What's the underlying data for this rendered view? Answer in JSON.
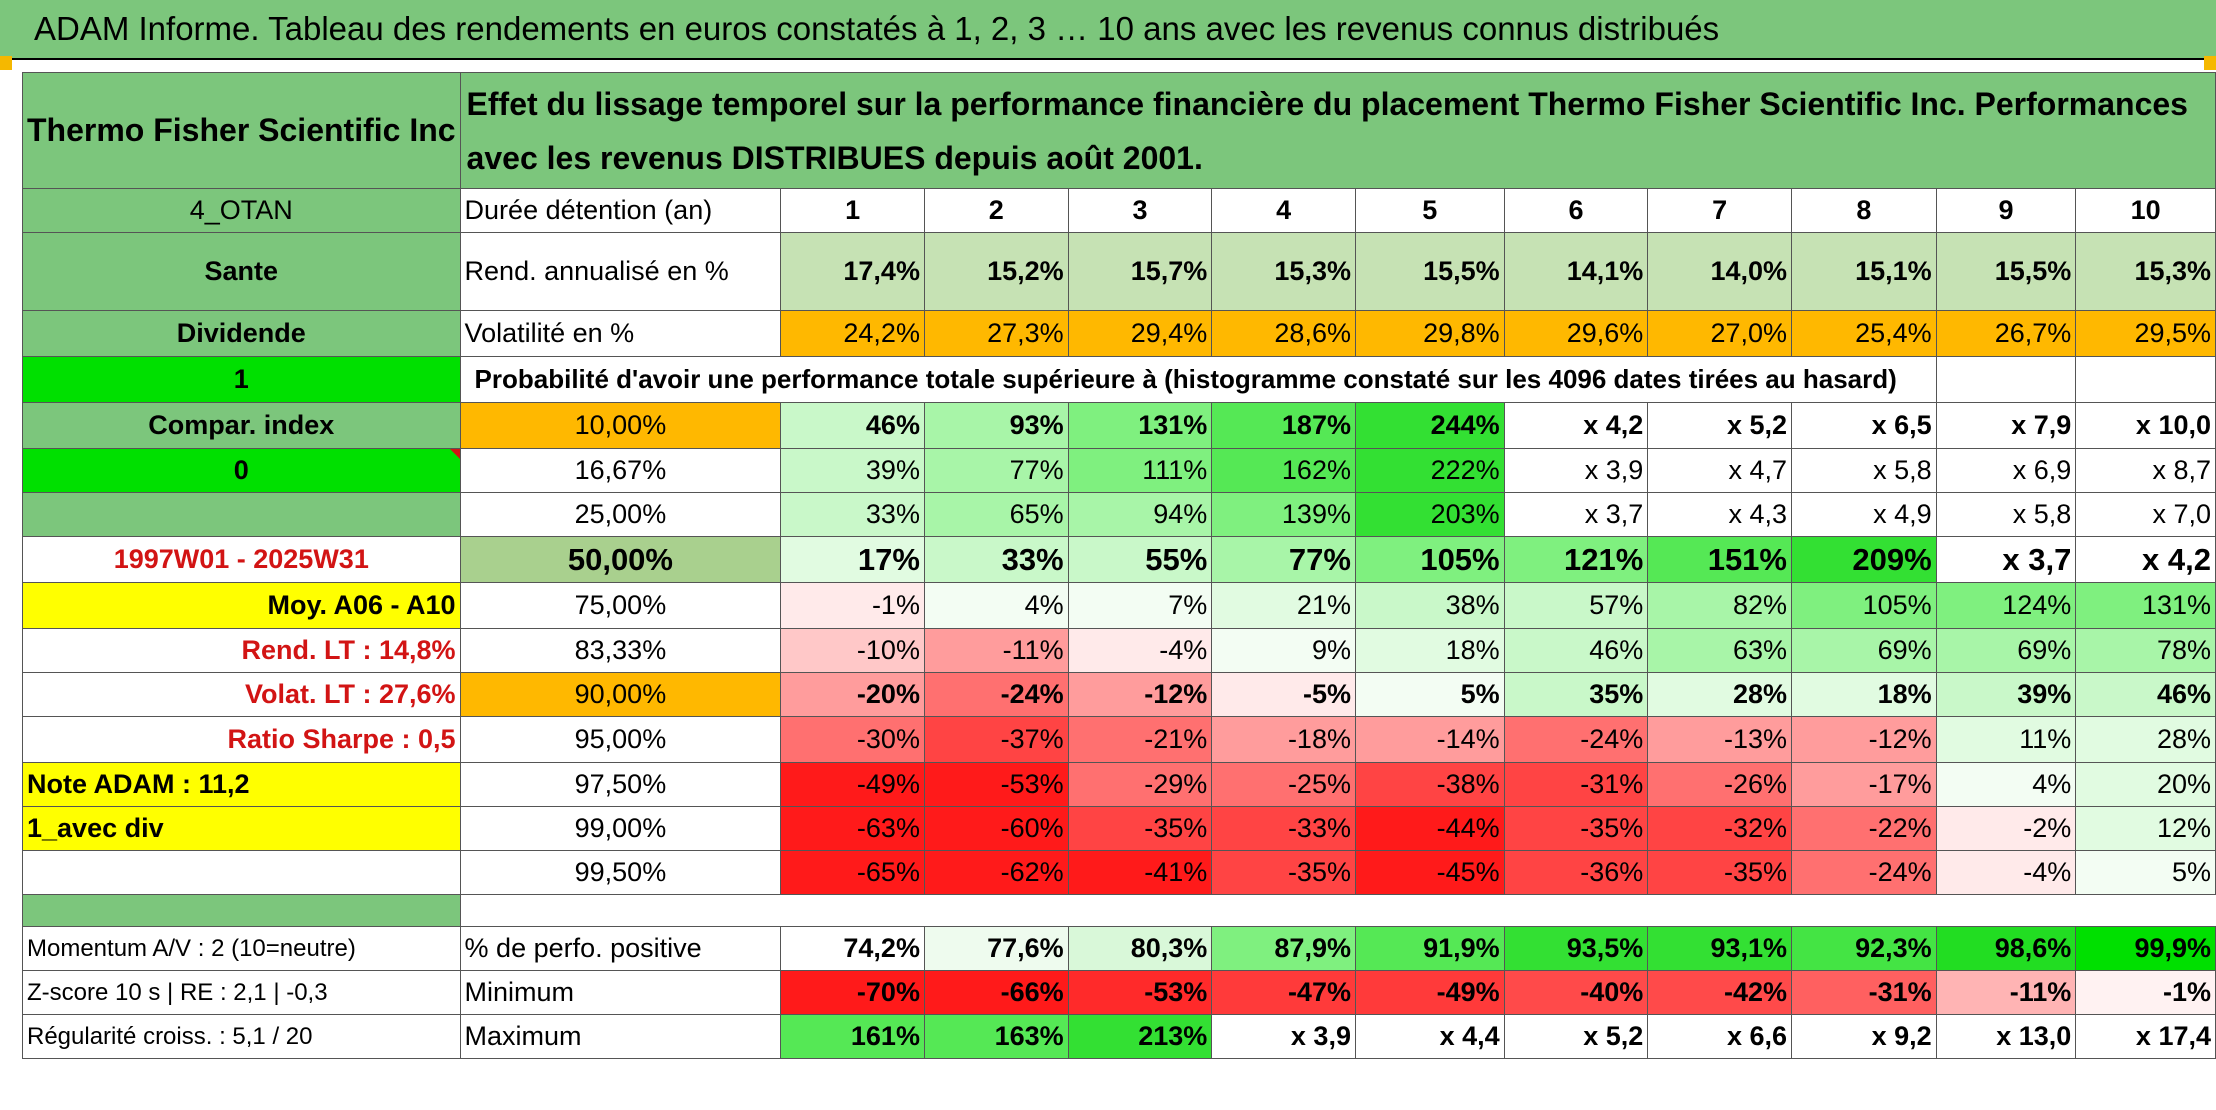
{
  "title": "ADAM Informe. Tableau des rendements en euros constatés à 1, 2, 3 … 10 ans avec les revenus connus distribués",
  "header": {
    "fund_name": "Thermo Fisher Scientific Inc",
    "description": "Effet du lissage temporel sur la performance financière du placement Thermo Fisher Scientific Inc. Performances avec les revenus DISTRIBUES depuis août 2001."
  },
  "colors": {
    "header_green": "#7cc67c",
    "bright_green": "#00e000",
    "orange": "#ffb800",
    "yellow": "#ffff00",
    "label_red": "#d21414"
  },
  "side": {
    "code": "4_OTAN",
    "sector": "Sante",
    "income_type": "Dividende",
    "flag_value": "1",
    "compar_index": "Compar. index",
    "compar_value": "0",
    "period": "1997W01 - 2025W31",
    "moy": "Moy. A06 - A10",
    "rend_lt": "Rend. LT :   14,8%",
    "volat_lt": "Volat. LT :   27,6%",
    "sharpe": "Ratio Sharpe :   0,5",
    "note": "Note ADAM : 11,2",
    "mode": "1_avec div",
    "momentum": "Momentum A/V : 2 (10=neutre)",
    "zscore": "Z-score 10 s | RE : 2,1 | -0,3",
    "regularite": "Régularité croiss. : 5,1 / 20"
  },
  "table": {
    "duration_label": "Durée détention (an)",
    "years": [
      "1",
      "2",
      "3",
      "4",
      "5",
      "6",
      "7",
      "8",
      "9",
      "10"
    ],
    "rend_label": "Rend. annualisé en %",
    "rend": [
      "17,4%",
      "15,2%",
      "15,7%",
      "15,3%",
      "15,5%",
      "14,1%",
      "14,0%",
      "15,1%",
      "15,5%",
      "15,3%"
    ],
    "vol_label": "Volatilité en %",
    "vol": [
      "24,2%",
      "27,3%",
      "29,4%",
      "28,6%",
      "29,8%",
      "29,6%",
      "27,0%",
      "25,4%",
      "26,7%",
      "29,5%"
    ],
    "prob_label": "Probabilité d'avoir une performance totale supérieure à (histogramme constaté sur les 4096 dates tirées au hasard)",
    "quantiles": [
      {
        "p": "10,00%",
        "v": [
          "46%",
          "93%",
          "131%",
          "187%",
          "244%",
          "x 4,2",
          "x 5,2",
          "x 6,5",
          "x 7,9",
          "x 10,0"
        ]
      },
      {
        "p": "16,67%",
        "v": [
          "39%",
          "77%",
          "111%",
          "162%",
          "222%",
          "x 3,9",
          "x 4,7",
          "x 5,8",
          "x 6,9",
          "x 8,7"
        ]
      },
      {
        "p": "25,00%",
        "v": [
          "33%",
          "65%",
          "94%",
          "139%",
          "203%",
          "x 3,7",
          "x 4,3",
          "x 4,9",
          "x 5,8",
          "x 7,0"
        ]
      },
      {
        "p": "50,00%",
        "v": [
          "17%",
          "33%",
          "55%",
          "77%",
          "105%",
          "121%",
          "151%",
          "209%",
          "x 3,7",
          "x 4,2"
        ]
      },
      {
        "p": "75,00%",
        "v": [
          "-1%",
          "4%",
          "7%",
          "21%",
          "38%",
          "57%",
          "82%",
          "105%",
          "124%",
          "131%"
        ]
      },
      {
        "p": "83,33%",
        "v": [
          "-10%",
          "-11%",
          "-4%",
          "9%",
          "18%",
          "46%",
          "63%",
          "69%",
          "69%",
          "78%"
        ]
      },
      {
        "p": "90,00%",
        "v": [
          "-20%",
          "-24%",
          "-12%",
          "-5%",
          "5%",
          "35%",
          "28%",
          "18%",
          "39%",
          "46%"
        ]
      },
      {
        "p": "95,00%",
        "v": [
          "-30%",
          "-37%",
          "-21%",
          "-18%",
          "-14%",
          "-24%",
          "-13%",
          "-12%",
          "11%",
          "28%"
        ]
      },
      {
        "p": "97,50%",
        "v": [
          "-49%",
          "-53%",
          "-29%",
          "-25%",
          "-38%",
          "-31%",
          "-26%",
          "-17%",
          "4%",
          "20%"
        ]
      },
      {
        "p": "99,00%",
        "v": [
          "-63%",
          "-60%",
          "-35%",
          "-33%",
          "-44%",
          "-35%",
          "-32%",
          "-22%",
          "-2%",
          "12%"
        ]
      },
      {
        "p": "99,50%",
        "v": [
          "-65%",
          "-62%",
          "-41%",
          "-35%",
          "-45%",
          "-36%",
          "-35%",
          "-24%",
          "-4%",
          "5%"
        ]
      }
    ],
    "pos_label": "% de perfo. positive",
    "pos": [
      "74,2%",
      "77,6%",
      "80,3%",
      "87,9%",
      "91,9%",
      "93,5%",
      "93,1%",
      "92,3%",
      "98,6%",
      "99,9%"
    ],
    "min_label": "Minimum",
    "min": [
      "-70%",
      "-66%",
      "-53%",
      "-47%",
      "-49%",
      "-40%",
      "-42%",
      "-31%",
      "-11%",
      "-1%"
    ],
    "max_label": "Maximum",
    "max": [
      "161%",
      "163%",
      "213%",
      "x 3,9",
      "x 4,4",
      "x 5,2",
      "x 6,6",
      "x 9,2",
      "x 13,0",
      "x 17,4"
    ]
  }
}
